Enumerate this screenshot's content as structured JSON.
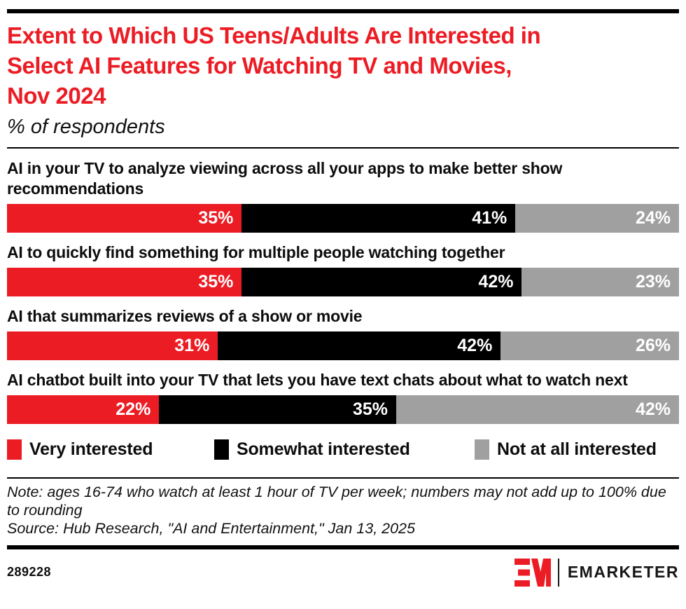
{
  "header": {
    "title": "Extent to Which US Teens/Adults Are Interested in Select AI Features for Watching TV and Movies, Nov 2024",
    "title_lines": [
      "Extent to Which US Teens/Adults Are Interested in",
      "Select AI Features for Watching TV and Movies,",
      "Nov 2024"
    ],
    "subtitle": "% of respondents"
  },
  "chart_data": {
    "type": "bar",
    "orientation": "horizontal",
    "stacked": true,
    "title": "Extent to Which US Teens/Adults Are Interested in Select AI Features for Watching TV and Movies, Nov 2024",
    "xlabel": "",
    "ylabel": "",
    "xlim": [
      0,
      100
    ],
    "value_suffix": "%",
    "grid": false,
    "legend_position": "bottom",
    "categories": [
      "AI in your TV to analyze viewing across all your apps to make better show recommendations",
      "AI to quickly find something for multiple people watching together",
      "AI that summarizes reviews of a show or movie",
      "AI chatbot built into your TV that lets you have text chats about what to watch next"
    ],
    "series": [
      {
        "name": "Very interested",
        "color": "#EC1C24",
        "values": [
          35,
          35,
          31,
          22
        ]
      },
      {
        "name": "Somewhat interested",
        "color": "#000000",
        "values": [
          41,
          42,
          42,
          35
        ]
      },
      {
        "name": "Not at all interested",
        "color": "#A0A0A0",
        "values": [
          24,
          23,
          26,
          42
        ]
      }
    ]
  },
  "footnote": {
    "note": "Note: ages 16-74 who watch at least 1 hour of TV per week; numbers may not add up to 100% due to rounding",
    "source": "Source: Hub Research, \"AI and Entertainment,\" Jan 13, 2025"
  },
  "footer": {
    "chart_id": "289228",
    "brand": "EMARKETER"
  },
  "colors": {
    "accent_red": "#EC1C24",
    "black": "#000000",
    "gray": "#A0A0A0"
  }
}
